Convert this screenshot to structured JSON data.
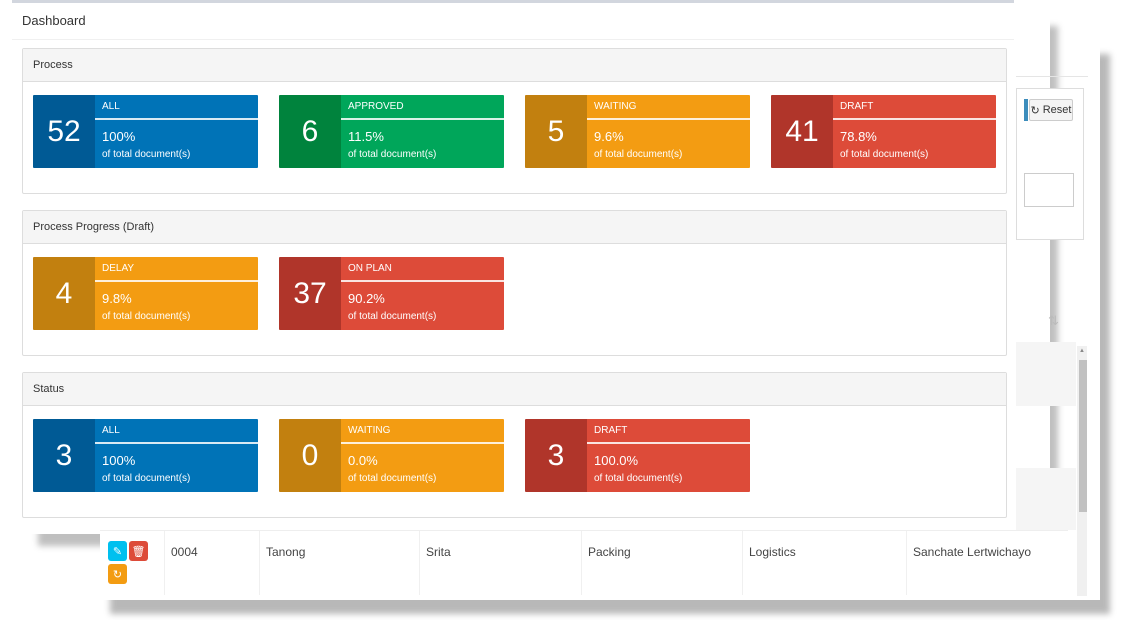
{
  "background": {
    "reset_label": "Reset",
    "table_row": {
      "cells": [
        "0004",
        "Tanong",
        "Srita",
        "Packing",
        "Logistics",
        "Sanchate Lertwichayo"
      ]
    }
  },
  "dashboard": {
    "title": "Dashboard",
    "process": {
      "title": "Process",
      "cards": [
        {
          "value": "52",
          "label": "ALL",
          "percent": "100%",
          "caption": "of total document(s)",
          "color": "#0073b7"
        },
        {
          "value": "6",
          "label": "APPROVED",
          "percent": "11.5%",
          "caption": "of total document(s)",
          "color": "#00a65a"
        },
        {
          "value": "5",
          "label": "WAITING",
          "percent": "9.6%",
          "caption": "of total document(s)",
          "color": "#f39c12"
        },
        {
          "value": "41",
          "label": "DRAFT",
          "percent": "78.8%",
          "caption": "of total document(s)",
          "color": "#dd4b39"
        }
      ]
    },
    "progress": {
      "title": "Process Progress (Draft)",
      "cards": [
        {
          "value": "4",
          "label": "DELAY",
          "percent": "9.8%",
          "caption": "of total document(s)",
          "color": "#f39c12"
        },
        {
          "value": "37",
          "label": "ON PLAN",
          "percent": "90.2%",
          "caption": "of total document(s)",
          "color": "#dd4b39"
        }
      ]
    },
    "status": {
      "title": "Status",
      "cards": [
        {
          "value": "3",
          "label": "ALL",
          "percent": "100%",
          "caption": "of total document(s)",
          "color": "#0073b7"
        },
        {
          "value": "0",
          "label": "WAITING",
          "percent": "0.0%",
          "caption": "of total document(s)",
          "color": "#f39c12"
        },
        {
          "value": "3",
          "label": "DRAFT",
          "percent": "100.0%",
          "caption": "of total document(s)",
          "color": "#dd4b39"
        }
      ]
    }
  }
}
